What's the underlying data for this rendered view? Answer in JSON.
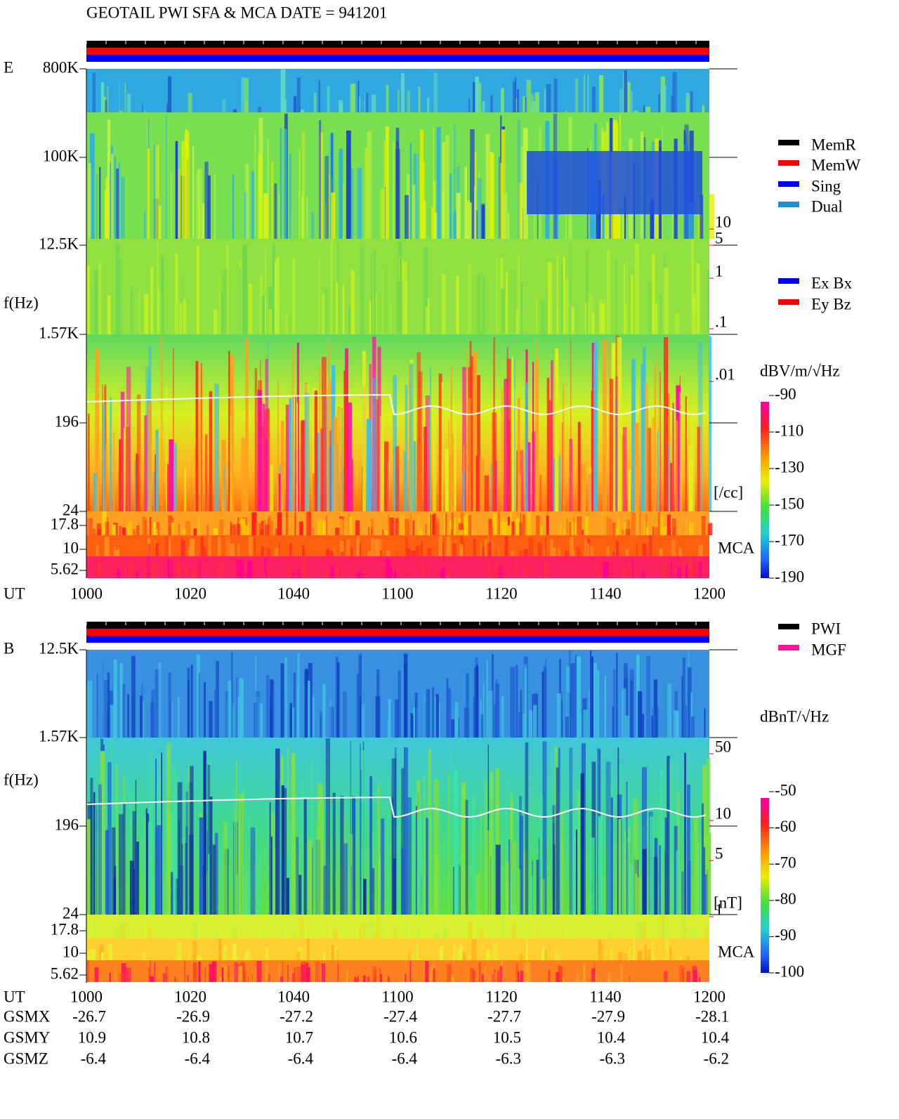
{
  "title": "GEOTAIL  PWI SFA & MCA   DATE = 941201",
  "panels": [
    {
      "label": "E",
      "y_label": "f(Hz)",
      "x_label": "UT",
      "y_ticks": [
        "800K",
        "100K",
        "12.5K",
        "1.57K",
        "196",
        "24",
        "17.8",
        "10",
        "5.62"
      ],
      "x_ticks": [
        "1000",
        "1020",
        "1040",
        "1100",
        "1120",
        "1140",
        "1200"
      ],
      "mca": "MCA",
      "density_ticks": [
        "10",
        "5",
        "1",
        ".1",
        ".01"
      ],
      "density_unit": "[/cc]",
      "colorbar_title": "dBV/m/√Hz",
      "colorbar_ticks": [
        "-90",
        "-110",
        "-130",
        "-150",
        "-170",
        "-190"
      ],
      "legend": [
        {
          "name": "MemR",
          "color": "#000000"
        },
        {
          "name": "MemW",
          "color": "#ff0000"
        },
        {
          "name": "Sing",
          "color": "#0000ff"
        },
        {
          "name": "Dual",
          "color": "#1e90d0"
        }
      ],
      "legend2": [
        {
          "name": "Ex Bx",
          "color": "#0000ff"
        },
        {
          "name": "Ey Bz",
          "color": "#ff0000"
        }
      ]
    },
    {
      "label": "B",
      "y_label": "f(Hz)",
      "x_label": "UT",
      "y_ticks": [
        "12.5K",
        "1.57K",
        "196",
        "24",
        "17.8",
        "10",
        "5.62"
      ],
      "x_ticks": [
        "1000",
        "1020",
        "1040",
        "1100",
        "1120",
        "1140",
        "1200"
      ],
      "mca": "MCA",
      "density_ticks": [
        "50",
        "10",
        "5",
        "1"
      ],
      "density_unit": "[nT]",
      "colorbar_title": "dBnT/√Hz",
      "colorbar_ticks": [
        "-50",
        "-60",
        "-70",
        "-80",
        "-90",
        "-100"
      ],
      "legend": [
        {
          "name": "PWI",
          "color": "#000000"
        },
        {
          "name": "MGF",
          "color": "#ff1493"
        }
      ]
    }
  ],
  "orbit": {
    "rows": [
      {
        "label": "GSMX",
        "values": [
          "-26.7",
          "-26.9",
          "-27.2",
          "-27.4",
          "-27.7",
          "-27.9",
          "-28.1"
        ]
      },
      {
        "label": "GSMY",
        "values": [
          "10.9",
          "10.8",
          "10.7",
          "10.6",
          "10.5",
          "10.4",
          "10.4"
        ]
      },
      {
        "label": "GSMZ",
        "values": [
          "-6.4",
          "-6.4",
          "-6.4",
          "-6.4",
          "-6.3",
          "-6.3",
          "-6.2"
        ]
      }
    ]
  }
}
